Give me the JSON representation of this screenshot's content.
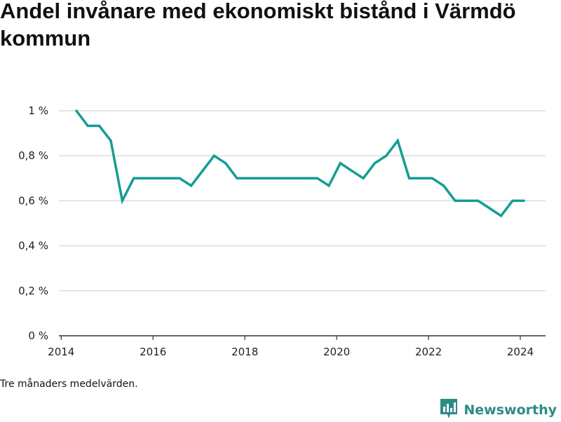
{
  "chart_data": {
    "type": "line",
    "title": "Andel invånare med ekonomiskt bistånd i Värmdö kommun",
    "xlabel": "",
    "ylabel": "",
    "xlim": [
      2013.95,
      2024.55
    ],
    "ylim": [
      0,
      1.0
    ],
    "x_ticks": [
      2014,
      2016,
      2018,
      2020,
      2022,
      2024
    ],
    "y_ticks": [
      0,
      0.2,
      0.4,
      0.6,
      0.8,
      1.0
    ],
    "y_tick_labels": [
      "0 %",
      "0,2 %",
      "0,4 %",
      "0,6 %",
      "0,8 %",
      "1 %"
    ],
    "grid": "horizontal",
    "series": [
      {
        "color": "#139e92",
        "points": [
          [
            2014.33,
            1.0
          ],
          [
            2014.58,
            0.933
          ],
          [
            2014.83,
            0.933
          ],
          [
            2015.08,
            0.867
          ],
          [
            2015.33,
            0.6
          ],
          [
            2015.58,
            0.7
          ],
          [
            2015.83,
            0.7
          ],
          [
            2016.08,
            0.7
          ],
          [
            2016.33,
            0.7
          ],
          [
            2016.58,
            0.7
          ],
          [
            2016.83,
            0.667
          ],
          [
            2017.08,
            0.733
          ],
          [
            2017.33,
            0.8
          ],
          [
            2017.58,
            0.767
          ],
          [
            2017.83,
            0.7
          ],
          [
            2018.08,
            0.7
          ],
          [
            2018.33,
            0.7
          ],
          [
            2018.58,
            0.7
          ],
          [
            2018.83,
            0.7
          ],
          [
            2019.08,
            0.7
          ],
          [
            2019.33,
            0.7
          ],
          [
            2019.58,
            0.7
          ],
          [
            2019.83,
            0.667
          ],
          [
            2020.08,
            0.767
          ],
          [
            2020.33,
            0.733
          ],
          [
            2020.58,
            0.7
          ],
          [
            2020.83,
            0.767
          ],
          [
            2021.08,
            0.8
          ],
          [
            2021.33,
            0.867
          ],
          [
            2021.58,
            0.7
          ],
          [
            2021.83,
            0.7
          ],
          [
            2022.08,
            0.7
          ],
          [
            2022.33,
            0.667
          ],
          [
            2022.58,
            0.6
          ],
          [
            2022.83,
            0.6
          ],
          [
            2023.08,
            0.6
          ],
          [
            2023.33,
            0.567
          ],
          [
            2023.58,
            0.533
          ],
          [
            2023.83,
            0.6
          ],
          [
            2024.08,
            0.6
          ]
        ]
      }
    ]
  },
  "footnote": "Tre månaders medelvärden.",
  "brand": {
    "name": "Newsworthy",
    "color": "#2d8b85",
    "icon": "newsworthy-logo-icon"
  }
}
